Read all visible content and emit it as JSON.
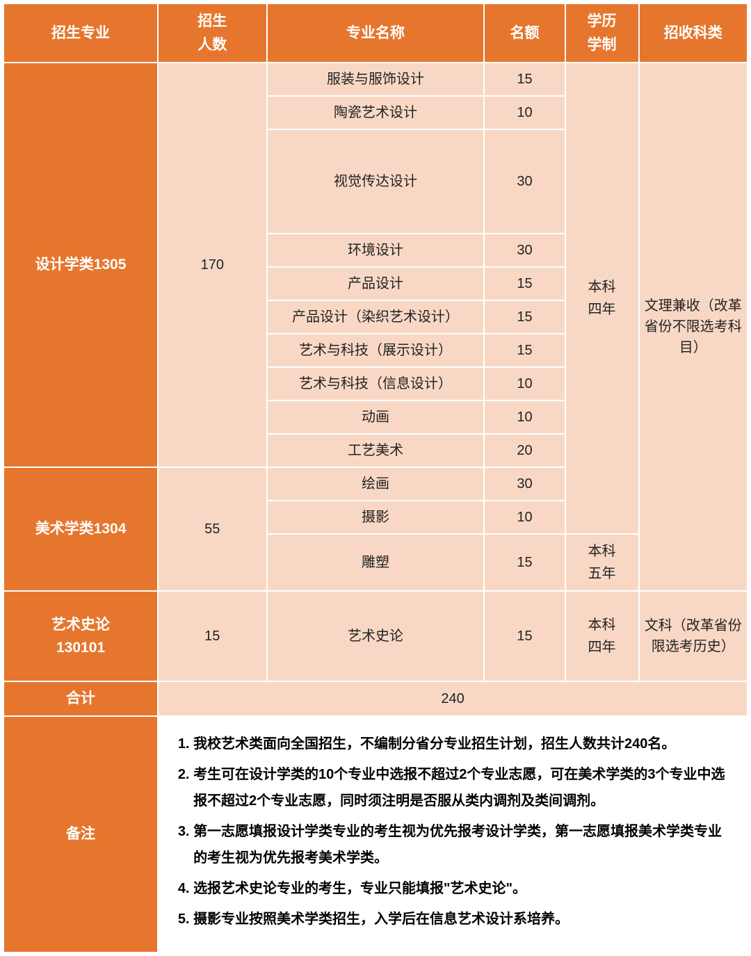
{
  "columns": {
    "major_cat": "招生专业",
    "enroll_count": "招生\n人数",
    "major_name": "专业名称",
    "quota": "名额",
    "degree_years": "学历\n学制",
    "subject_type": "招收科类"
  },
  "col_widths": {
    "c1": 220,
    "c2": 155,
    "c3": 310,
    "c4": 115,
    "c5": 105,
    "c6": 155
  },
  "cat1": {
    "label": "设计学类1305",
    "count": "170",
    "rows": [
      {
        "name": "服装与服饰设计",
        "quota": "15"
      },
      {
        "name": "陶瓷艺术设计",
        "quota": "10"
      },
      {
        "name": "视觉传达设计",
        "quota": "30"
      },
      {
        "name": "环境设计",
        "quota": "30"
      },
      {
        "name": "产品设计",
        "quota": "15"
      },
      {
        "name": "产品设计（染织艺术设计）",
        "quota": "15"
      },
      {
        "name": "艺术与科技（展示设计）",
        "quota": "15"
      },
      {
        "name": "艺术与科技（信息设计）",
        "quota": "10"
      },
      {
        "name": "动画",
        "quota": "10"
      },
      {
        "name": "工艺美术",
        "quota": "20"
      }
    ]
  },
  "cat2": {
    "label": "美术学类1304",
    "count": "55",
    "rows": [
      {
        "name": "绘画",
        "quota": "30"
      },
      {
        "name": "摄影",
        "quota": "10"
      },
      {
        "name": "雕塑",
        "quota": "15"
      }
    ]
  },
  "cat3": {
    "label": "艺术史论\n130101",
    "count": "15",
    "name": "艺术史论",
    "quota": "15"
  },
  "degree_4y": "本科\n四年",
  "degree_5y": "本科\n五年",
  "subject_both": "文理兼收（改革省份不限选考科目）",
  "subject_arts": "文科（改革省份限选考历史）",
  "total_label": "合计",
  "total_value": "240",
  "notes_label": "备注",
  "notes": [
    "我校艺术类面向全国招生，不编制分省分专业招生计划，招生人数共计240名。",
    "考生可在设计学类的10个专业中选报不超过2个专业志愿，可在美术学类的3个专业中选报不超过2个专业志愿，同时须注明是否服从类内调剂及类间调剂。",
    "第一志愿填报设计学类专业的考生视为优先报考设计学类，第一志愿填报美术学类专业的考生视为优先报考美术学类。",
    "选报艺术史论专业的考生，专业只能填报\"艺术史论\"。",
    "摄影专业按照美术学类招生，入学后在信息艺术设计系培养。"
  ]
}
